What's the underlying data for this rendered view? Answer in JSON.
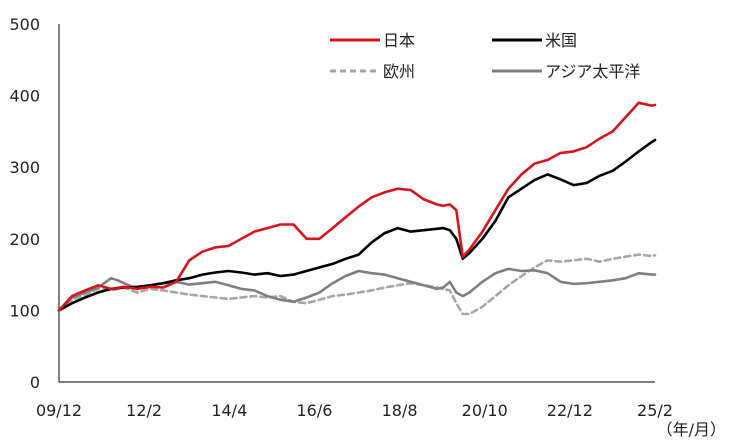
{
  "chart_data": {
    "type": "line",
    "ylim": [
      0,
      500
    ],
    "y_ticks": [
      "0",
      "100",
      "200",
      "300",
      "400",
      "500"
    ],
    "x_ticks": [
      "09/12",
      "12/2",
      "14/4",
      "16/6",
      "18/8",
      "20/10",
      "22/12",
      "25/2"
    ],
    "x_unit_label": "（年/月）",
    "grid": false,
    "legend_position": "top-right",
    "series": [
      {
        "name": "日本",
        "color": "#d6141e",
        "dash": "solid",
        "x": [
          0,
          4,
          8,
          12,
          16,
          20,
          24,
          28,
          32,
          36,
          40,
          44,
          48,
          52,
          56,
          60,
          64,
          68,
          72,
          76,
          80,
          84,
          88,
          92,
          96,
          100,
          104,
          108,
          112,
          116,
          118,
          120,
          122,
          124,
          126,
          130,
          134,
          138,
          142,
          146,
          150,
          154,
          158,
          162,
          166,
          170,
          174,
          178,
          182,
          183
        ],
        "values": [
          100,
          120,
          128,
          135,
          130,
          133,
          130,
          133,
          132,
          140,
          170,
          182,
          188,
          190,
          200,
          210,
          215,
          220,
          220,
          200,
          200,
          215,
          230,
          245,
          258,
          265,
          270,
          268,
          255,
          248,
          246,
          248,
          240,
          175,
          185,
          210,
          240,
          270,
          290,
          305,
          310,
          320,
          322,
          328,
          340,
          350,
          370,
          390,
          386,
          387
        ]
      },
      {
        "name": "米国",
        "color": "#000000",
        "dash": "solid",
        "x": [
          0,
          4,
          8,
          12,
          16,
          20,
          24,
          28,
          32,
          36,
          40,
          44,
          48,
          52,
          56,
          60,
          64,
          68,
          72,
          76,
          80,
          84,
          88,
          92,
          96,
          100,
          104,
          108,
          112,
          116,
          118,
          120,
          122,
          124,
          126,
          130,
          134,
          138,
          142,
          146,
          150,
          154,
          158,
          162,
          166,
          170,
          174,
          178,
          182,
          183
        ],
        "values": [
          100,
          110,
          118,
          125,
          130,
          132,
          133,
          135,
          138,
          142,
          145,
          150,
          153,
          155,
          153,
          150,
          152,
          148,
          150,
          155,
          160,
          165,
          172,
          178,
          195,
          208,
          215,
          210,
          212,
          214,
          215,
          212,
          200,
          172,
          180,
          200,
          225,
          258,
          270,
          282,
          290,
          283,
          275,
          278,
          288,
          295,
          308,
          322,
          335,
          338
        ]
      },
      {
        "name": "欧州",
        "color": "#a6a6a6",
        "dash": "dashed",
        "x": [
          0,
          4,
          8,
          12,
          16,
          20,
          24,
          28,
          32,
          36,
          40,
          44,
          48,
          52,
          56,
          60,
          64,
          68,
          72,
          76,
          80,
          84,
          88,
          92,
          96,
          100,
          104,
          108,
          112,
          116,
          118,
          120,
          122,
          124,
          126,
          130,
          134,
          138,
          142,
          146,
          150,
          154,
          158,
          162,
          166,
          170,
          174,
          178,
          182,
          183
        ],
        "values": [
          100,
          115,
          122,
          130,
          128,
          132,
          125,
          130,
          128,
          125,
          122,
          120,
          118,
          116,
          118,
          120,
          118,
          120,
          112,
          110,
          115,
          120,
          122,
          125,
          128,
          132,
          135,
          138,
          135,
          132,
          130,
          128,
          110,
          95,
          95,
          105,
          120,
          135,
          148,
          160,
          170,
          168,
          170,
          172,
          168,
          172,
          175,
          178,
          176,
          177
        ]
      },
      {
        "name": "アジア太平洋",
        "color": "#7f7f7f",
        "dash": "solid",
        "x": [
          0,
          4,
          8,
          12,
          16,
          18,
          20,
          24,
          28,
          32,
          36,
          40,
          44,
          48,
          52,
          56,
          60,
          64,
          68,
          72,
          76,
          80,
          84,
          88,
          92,
          96,
          100,
          104,
          108,
          112,
          116,
          118,
          120,
          122,
          124,
          126,
          130,
          134,
          138,
          142,
          146,
          150,
          154,
          158,
          162,
          166,
          170,
          174,
          178,
          182,
          183
        ],
        "values": [
          100,
          118,
          125,
          132,
          145,
          142,
          138,
          130,
          135,
          138,
          140,
          136,
          138,
          140,
          135,
          130,
          128,
          120,
          115,
          112,
          118,
          125,
          138,
          148,
          155,
          152,
          150,
          145,
          140,
          135,
          130,
          132,
          140,
          125,
          120,
          125,
          140,
          152,
          158,
          155,
          156,
          152,
          140,
          137,
          138,
          140,
          142,
          145,
          152,
          150,
          150
        ]
      }
    ]
  }
}
